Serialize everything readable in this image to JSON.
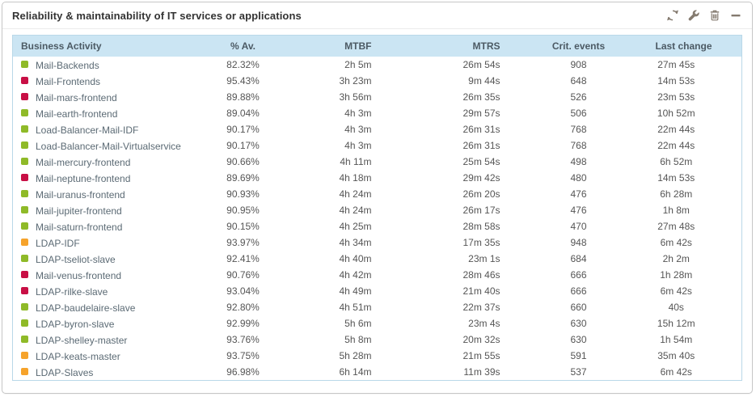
{
  "widget": {
    "title": "Reliability & maintainability of IT services or applications",
    "toolbar": [
      {
        "name": "refresh",
        "icon": "refresh-icon"
      },
      {
        "name": "configure",
        "icon": "wrench-icon"
      },
      {
        "name": "delete",
        "icon": "trash-icon"
      },
      {
        "name": "minimize",
        "icon": "minus-icon"
      }
    ]
  },
  "colors": {
    "header_bg": "#cbe5f3",
    "header_text": "#4c5a64",
    "table_border": "#b9d8e8",
    "icon_gray": "#847a6f",
    "status_green": "#8fba28",
    "status_red": "#c80f45",
    "status_orange": "#f6a32b"
  },
  "table": {
    "columns": [
      "Business Activity",
      "% Av.",
      "MTBF",
      "MTRS",
      "Crit. events",
      "Last change"
    ],
    "rows": [
      {
        "status": "green",
        "activity": "Mail-Backends",
        "availability": "82.32%",
        "mtbf": "2h 5m",
        "mtrs": "26m 54s",
        "crit_events": "908",
        "last_change": "27m 45s"
      },
      {
        "status": "red",
        "activity": "Mail-Frontends",
        "availability": "95.43%",
        "mtbf": "3h 23m",
        "mtrs": "9m 44s",
        "crit_events": "648",
        "last_change": "14m 53s"
      },
      {
        "status": "red",
        "activity": "Mail-mars-frontend",
        "availability": "89.88%",
        "mtbf": "3h 56m",
        "mtrs": "26m 35s",
        "crit_events": "526",
        "last_change": "23m 53s"
      },
      {
        "status": "green",
        "activity": "Mail-earth-frontend",
        "availability": "89.04%",
        "mtbf": "4h 3m",
        "mtrs": "29m 57s",
        "crit_events": "506",
        "last_change": "10h 52m"
      },
      {
        "status": "green",
        "activity": "Load-Balancer-Mail-IDF",
        "availability": "90.17%",
        "mtbf": "4h 3m",
        "mtrs": "26m 31s",
        "crit_events": "768",
        "last_change": "22m 44s"
      },
      {
        "status": "green",
        "activity": "Load-Balancer-Mail-Virtualservice",
        "availability": "90.17%",
        "mtbf": "4h 3m",
        "mtrs": "26m 31s",
        "crit_events": "768",
        "last_change": "22m 44s"
      },
      {
        "status": "green",
        "activity": "Mail-mercury-frontend",
        "availability": "90.66%",
        "mtbf": "4h 11m",
        "mtrs": "25m 54s",
        "crit_events": "498",
        "last_change": "6h 52m"
      },
      {
        "status": "red",
        "activity": "Mail-neptune-frontend",
        "availability": "89.69%",
        "mtbf": "4h 18m",
        "mtrs": "29m 42s",
        "crit_events": "480",
        "last_change": "14m 53s"
      },
      {
        "status": "green",
        "activity": "Mail-uranus-frontend",
        "availability": "90.93%",
        "mtbf": "4h 24m",
        "mtrs": "26m 20s",
        "crit_events": "476",
        "last_change": "6h 28m"
      },
      {
        "status": "green",
        "activity": "Mail-jupiter-frontend",
        "availability": "90.95%",
        "mtbf": "4h 24m",
        "mtrs": "26m 17s",
        "crit_events": "476",
        "last_change": "1h 8m"
      },
      {
        "status": "green",
        "activity": "Mail-saturn-frontend",
        "availability": "90.15%",
        "mtbf": "4h 25m",
        "mtrs": "28m 58s",
        "crit_events": "470",
        "last_change": "27m 48s"
      },
      {
        "status": "orange",
        "activity": "LDAP-IDF",
        "availability": "93.97%",
        "mtbf": "4h 34m",
        "mtrs": "17m 35s",
        "crit_events": "948",
        "last_change": "6m 42s"
      },
      {
        "status": "green",
        "activity": "LDAP-tseliot-slave",
        "availability": "92.41%",
        "mtbf": "4h 40m",
        "mtrs": "23m 1s",
        "crit_events": "684",
        "last_change": "2h 2m"
      },
      {
        "status": "red",
        "activity": "Mail-venus-frontend",
        "availability": "90.76%",
        "mtbf": "4h 42m",
        "mtrs": "28m 46s",
        "crit_events": "666",
        "last_change": "1h 28m"
      },
      {
        "status": "red",
        "activity": "LDAP-rilke-slave",
        "availability": "93.04%",
        "mtbf": "4h 49m",
        "mtrs": "21m 40s",
        "crit_events": "666",
        "last_change": "6m 42s"
      },
      {
        "status": "green",
        "activity": "LDAP-baudelaire-slave",
        "availability": "92.80%",
        "mtbf": "4h 51m",
        "mtrs": "22m 37s",
        "crit_events": "660",
        "last_change": "40s"
      },
      {
        "status": "green",
        "activity": "LDAP-byron-slave",
        "availability": "92.99%",
        "mtbf": "5h 6m",
        "mtrs": "23m 4s",
        "crit_events": "630",
        "last_change": "15h 12m"
      },
      {
        "status": "green",
        "activity": "LDAP-shelley-master",
        "availability": "93.76%",
        "mtbf": "5h 8m",
        "mtrs": "20m 32s",
        "crit_events": "630",
        "last_change": "1h 54m"
      },
      {
        "status": "orange",
        "activity": "LDAP-keats-master",
        "availability": "93.75%",
        "mtbf": "5h 28m",
        "mtrs": "21m 55s",
        "crit_events": "591",
        "last_change": "35m 40s"
      },
      {
        "status": "orange",
        "activity": "LDAP-Slaves",
        "availability": "96.98%",
        "mtbf": "6h 14m",
        "mtrs": "11m 39s",
        "crit_events": "537",
        "last_change": "6m 42s"
      }
    ]
  }
}
